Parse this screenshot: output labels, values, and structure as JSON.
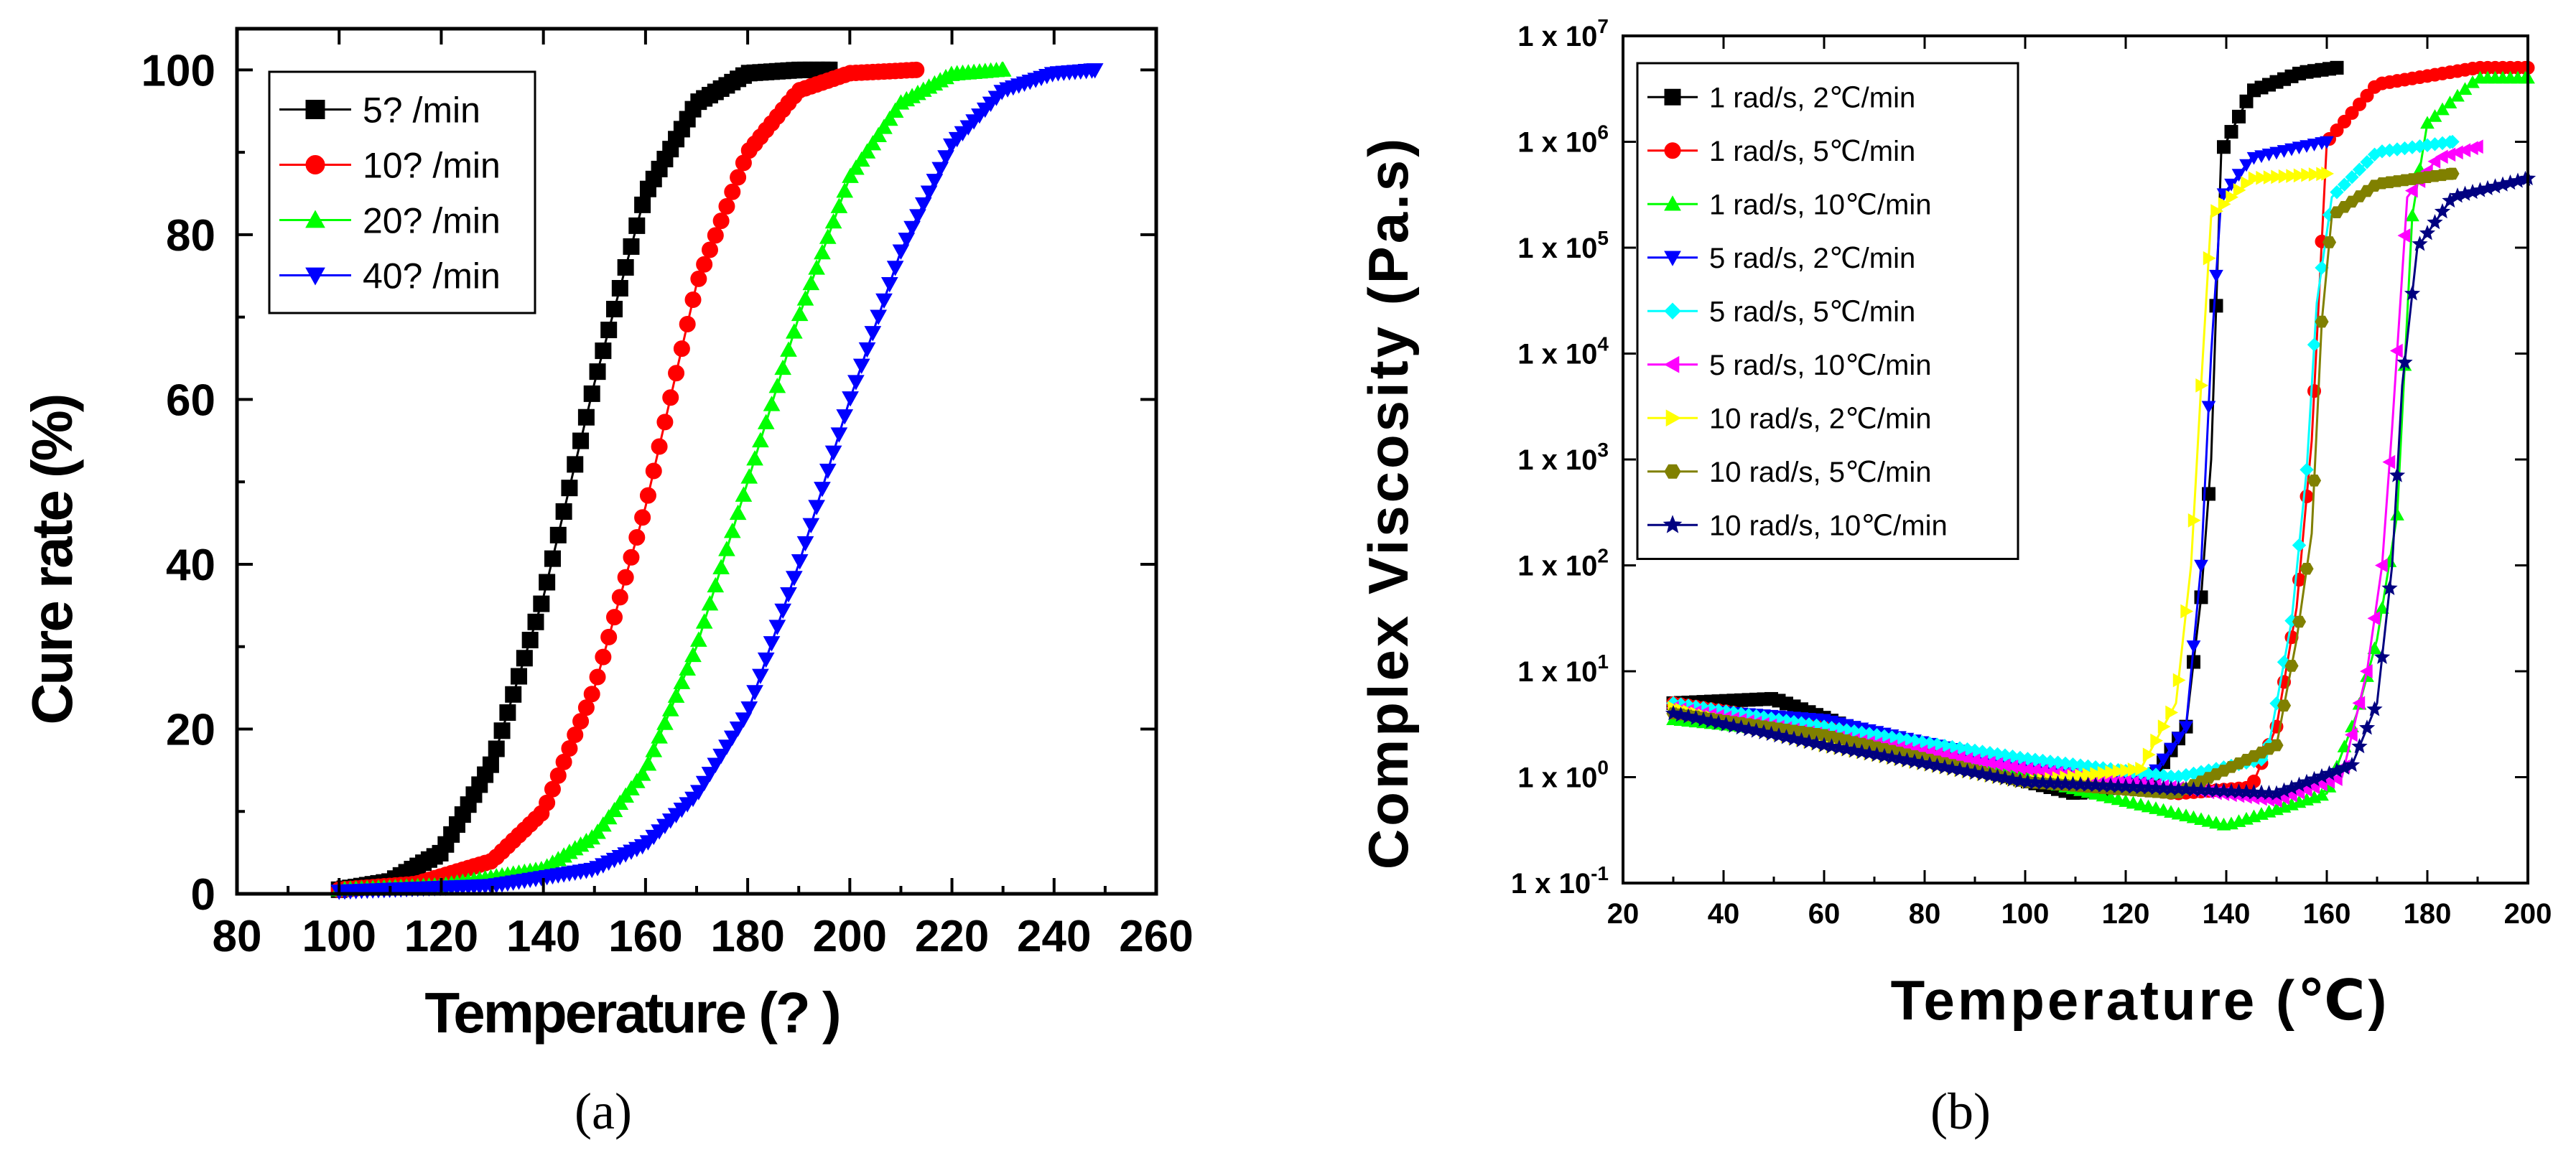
{
  "figure": {
    "caption_a": "(a)",
    "caption_b": "(b)"
  },
  "chart_data": [
    {
      "type": "line",
      "title": "",
      "xlabel": "Temperature (? )",
      "ylabel": "Cure rate (%)",
      "xlim": [
        80,
        260
      ],
      "ylim": [
        0,
        105
      ],
      "xticks": [
        80,
        100,
        120,
        140,
        160,
        180,
        200,
        220,
        240,
        260
      ],
      "yticks": [
        0,
        20,
        40,
        60,
        80,
        100
      ],
      "legend_position": "top-left",
      "series": [
        {
          "name": "5? /min",
          "color": "#000000",
          "marker": "square",
          "x": [
            100,
            110,
            120,
            130,
            140,
            150,
            160,
            170,
            180,
            190,
            196
          ],
          "y": [
            0.5,
            1.5,
            5,
            16,
            36,
            62,
            85,
            96,
            99.6,
            100,
            100
          ]
        },
        {
          "name": "10? /min",
          "color": "#ff0000",
          "marker": "circle",
          "x": [
            100,
            115,
            130,
            140,
            150,
            160,
            170,
            180,
            190,
            200,
            213
          ],
          "y": [
            0.5,
            1.2,
            4,
            10,
            25,
            47,
            74,
            90,
            97.5,
            99.6,
            100
          ]
        },
        {
          "name": "20? /min",
          "color": "#00ff00",
          "marker": "triangle-up",
          "x": [
            100,
            120,
            140,
            150,
            160,
            170,
            180,
            190,
            200,
            210,
            220,
            230
          ],
          "y": [
            0.5,
            1,
            3,
            7,
            15,
            30,
            50,
            70,
            87,
            96,
            99.5,
            100
          ]
        },
        {
          "name": "40? /min",
          "color": "#0000ff",
          "marker": "triangle-down",
          "x": [
            100,
            130,
            150,
            160,
            170,
            180,
            190,
            200,
            210,
            220,
            230,
            240,
            248
          ],
          "y": [
            0.3,
            1,
            3,
            6,
            12,
            22,
            40,
            60,
            78,
            91,
            97.5,
            99.6,
            100
          ]
        }
      ]
    },
    {
      "type": "line",
      "title": "",
      "xlabel": "Temperature (℃)",
      "ylabel": "Complex Viscosity (Pa.s)",
      "xlim": [
        20,
        200
      ],
      "ylim": [
        0.1,
        10000000
      ],
      "yscale": "log",
      "xticks": [
        20,
        40,
        60,
        80,
        100,
        120,
        140,
        160,
        180,
        200
      ],
      "yticks": [
        {
          "value": 0.1,
          "base": "1 x 10",
          "exp": "-1"
        },
        {
          "value": 1,
          "base": "1 x 10",
          "exp": "0"
        },
        {
          "value": 10,
          "base": "1 x 10",
          "exp": "1"
        },
        {
          "value": 100,
          "base": "1 x 10",
          "exp": "2"
        },
        {
          "value": 1000,
          "base": "1 x 10",
          "exp": "3"
        },
        {
          "value": 10000,
          "base": "1 x 10",
          "exp": "4"
        },
        {
          "value": 100000,
          "base": "1 x 10",
          "exp": "5"
        },
        {
          "value": 1000000,
          "base": "1 x 10",
          "exp": "6"
        },
        {
          "value": 10000000,
          "base": "1 x 10",
          "exp": "7"
        }
      ],
      "legend_position": "top-left",
      "series": [
        {
          "name": "1 rad/s, 2℃/min",
          "color": "#000000",
          "marker": "square",
          "x": [
            30,
            50,
            80,
            110,
            125,
            132,
            135,
            137,
            139,
            145,
            155,
            162
          ],
          "y": [
            5,
            5.5,
            1.6,
            0.7,
            0.9,
            3,
            50,
            1000,
            800000,
            3000000,
            4500000,
            5000000
          ]
        },
        {
          "name": "1 rad/s, 5℃/min",
          "color": "#ff0000",
          "marker": "circle",
          "x": [
            30,
            60,
            100,
            130,
            145,
            150,
            154,
            157,
            160,
            170,
            190,
            200
          ],
          "y": [
            5,
            3,
            1.1,
            0.7,
            0.8,
            3,
            40,
            1500,
            1000000,
            3500000,
            5000000,
            5000000
          ]
        },
        {
          "name": "1 rad/s, 10℃/min",
          "color": "#00ff00",
          "marker": "triangle-up",
          "x": [
            30,
            60,
            100,
            140,
            160,
            166,
            170,
            174,
            177,
            180,
            190,
            200
          ],
          "y": [
            3.5,
            2.5,
            1,
            0.35,
            0.7,
            4,
            20,
            300,
            200000,
            1500000,
            4000000,
            4000000
          ]
        },
        {
          "name": "5 rad/s, 2℃/min",
          "color": "#0000ff",
          "marker": "triangle-down",
          "x": [
            30,
            60,
            100,
            125,
            132,
            135,
            137,
            139,
            145,
            155,
            160
          ],
          "y": [
            4.5,
            3.5,
            1.3,
            1,
            3,
            100,
            10000,
            300000,
            700000,
            900000,
            1000000
          ]
        },
        {
          "name": "5 rad/s, 5℃/min",
          "color": "#00ffff",
          "marker": "diamond",
          "x": [
            30,
            60,
            100,
            130,
            148,
            153,
            156,
            158,
            161,
            170,
            185
          ],
          "y": [
            5,
            3,
            1.5,
            1,
            1.5,
            30,
            800,
            30000,
            300000,
            800000,
            1000000
          ]
        },
        {
          "name": "5 rad/s, 10℃/min",
          "color": "#ff00ff",
          "marker": "triangle-left",
          "x": [
            30,
            60,
            100,
            150,
            163,
            168,
            171,
            173,
            176,
            182,
            190
          ],
          "y": [
            4.5,
            2.5,
            1.2,
            0.6,
            1,
            10,
            100,
            2000,
            300000,
            700000,
            900000
          ]
        },
        {
          "name": "10 rad/s, 2℃/min",
          "color": "#ffff00",
          "marker": "triangle-right",
          "x": [
            30,
            60,
            100,
            123,
            130,
            133,
            135,
            137,
            145,
            160
          ],
          "y": [
            4.5,
            2,
            0.9,
            1.2,
            5,
            100,
            5000,
            200000,
            450000,
            500000
          ]
        },
        {
          "name": "10 rad/s, 5℃/min",
          "color": "#808000",
          "marker": "hexagon",
          "x": [
            30,
            60,
            100,
            130,
            150,
            154,
            157,
            159,
            161,
            170,
            185
          ],
          "y": [
            4,
            2.5,
            0.9,
            0.7,
            2,
            20,
            200,
            20000,
            200000,
            400000,
            500000
          ]
        },
        {
          "name": "10 rad/s, 10℃/min",
          "color": "#000080",
          "marker": "star",
          "x": [
            30,
            60,
            100,
            150,
            165,
            170,
            173,
            175,
            178,
            185,
            200
          ],
          "y": [
            4,
            2,
            0.9,
            0.7,
            1.3,
            5,
            100,
            5000,
            100000,
            300000,
            450000
          ]
        }
      ]
    }
  ]
}
